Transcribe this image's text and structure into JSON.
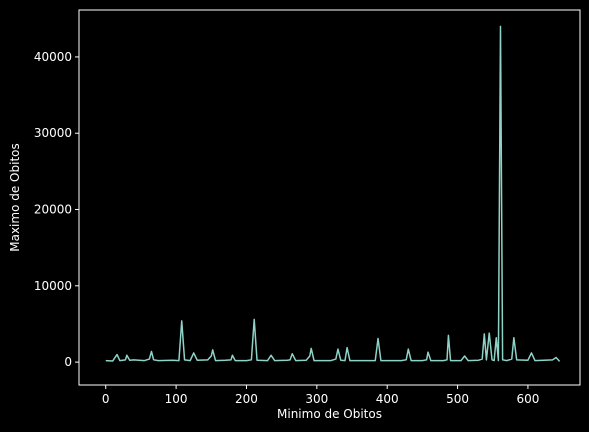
{
  "chart_data": {
    "type": "line",
    "xlabel": "Minimo de Obitos",
    "ylabel": "Maximo de Obitos",
    "x": [
      0,
      10,
      16,
      20,
      28,
      30,
      34,
      40,
      55,
      62,
      65,
      68,
      75,
      95,
      104,
      108,
      112,
      120,
      125,
      130,
      145,
      150,
      152,
      156,
      170,
      178,
      180,
      184,
      200,
      207,
      211,
      215,
      230,
      235,
      240,
      258,
      262,
      265,
      270,
      285,
      290,
      292,
      296,
      320,
      327,
      330,
      334,
      340,
      343,
      347,
      370,
      383,
      387,
      391,
      420,
      427,
      430,
      434,
      450,
      456,
      458,
      462,
      480,
      485,
      487,
      490,
      505,
      510,
      515,
      530,
      535,
      538,
      541,
      545,
      549,
      552,
      555,
      558,
      561,
      564,
      570,
      577,
      580,
      584,
      600,
      605,
      610,
      635,
      640,
      645
    ],
    "series": [
      {
        "color": "#8dd3c7",
        "values": [
          200,
          150,
          1000,
          200,
          300,
          900,
          250,
          300,
          200,
          400,
          1400,
          300,
          200,
          250,
          200,
          5400,
          300,
          200,
          1200,
          250,
          300,
          800,
          1600,
          200,
          250,
          300,
          900,
          200,
          200,
          300,
          5600,
          250,
          200,
          900,
          200,
          250,
          300,
          1100,
          200,
          250,
          800,
          1800,
          200,
          200,
          400,
          1700,
          250,
          200,
          1900,
          200,
          200,
          200,
          3100,
          200,
          200,
          300,
          1700,
          200,
          200,
          300,
          1300,
          200,
          200,
          300,
          3500,
          200,
          200,
          800,
          200,
          250,
          400,
          3700,
          300,
          3800,
          300,
          200,
          3200,
          200,
          44000,
          300,
          200,
          400,
          3200,
          300,
          250,
          1200,
          200,
          300,
          600,
          100
        ]
      }
    ],
    "xlim": [
      -38,
      674
    ],
    "ylim": [
      -3000,
      46150
    ],
    "xticks": [
      0,
      100,
      200,
      300,
      400,
      500,
      600
    ],
    "yticks": [
      0,
      10000,
      20000,
      30000,
      40000
    ]
  }
}
